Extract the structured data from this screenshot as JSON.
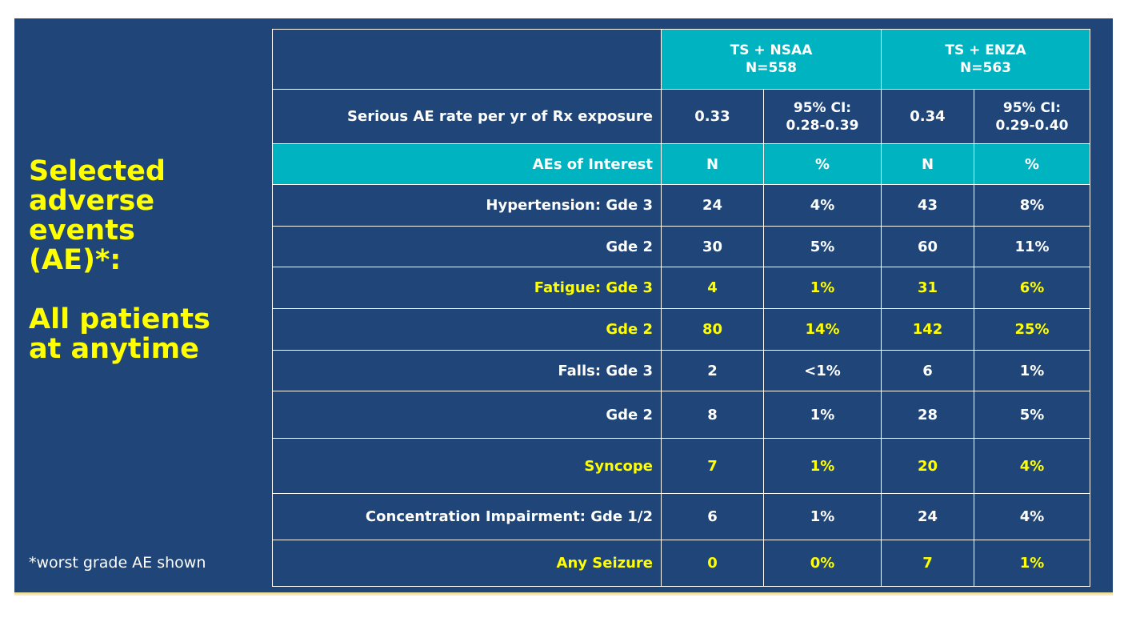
{
  "side": {
    "line1": "Selected",
    "line2": "adverse events",
    "line3": "(AE)*:",
    "line4": "All patients",
    "line5": "at anytime",
    "footnote": "*worst grade AE shown"
  },
  "groups": [
    {
      "name": "TS + NSAA",
      "n": "N=558"
    },
    {
      "name": "TS + ENZA",
      "n": "N=563"
    }
  ],
  "serious": {
    "label": "Serious AE rate per yr of Rx exposure",
    "g1_rate": "0.33",
    "g1_ci_label": "95% CI:",
    "g1_ci": "0.28-0.39",
    "g2_rate": "0.34",
    "g2_ci_label": "95% CI:",
    "g2_ci": "0.29-0.40"
  },
  "subheader": {
    "label": "AEs of Interest",
    "n1": "N",
    "p1": "%",
    "n2": "N",
    "p2": "%"
  },
  "rows": [
    {
      "label": "Hypertension: Gde 3",
      "n1": "24",
      "p1": "4%",
      "n2": "43",
      "p2": "8%"
    },
    {
      "label": "Gde 2",
      "n1": "30",
      "p1": "5%",
      "n2": "60",
      "p2": "11%"
    },
    {
      "label": "Fatigue: Gde 3",
      "n1": "4",
      "p1": "1%",
      "n2": "31",
      "p2": "6%"
    },
    {
      "label": "Gde 2",
      "n1": "80",
      "p1": "14%",
      "n2": "142",
      "p2": "25%"
    },
    {
      "label": "Falls: Gde 3",
      "n1": "2",
      "p1": "<1%",
      "n2": "6",
      "p2": "1%"
    },
    {
      "label": "Gde 2",
      "n1": "8",
      "p1": "1%",
      "n2": "28",
      "p2": "5%"
    },
    {
      "label": "Syncope",
      "n1": "7",
      "p1": "1%",
      "n2": "20",
      "p2": "4%"
    },
    {
      "label": "Concentration Impairment: Gde 1/2",
      "n1": "6",
      "p1": "1%",
      "n2": "24",
      "p2": "4%"
    },
    {
      "label": "Any Seizure",
      "n1": "0",
      "p1": "0%",
      "n2": "7",
      "p2": "1%"
    }
  ],
  "colors": {
    "background": "#1f4579",
    "header_teal": "#00b3c0",
    "highlight_text": "#ffff00",
    "text": "#ffffff"
  }
}
